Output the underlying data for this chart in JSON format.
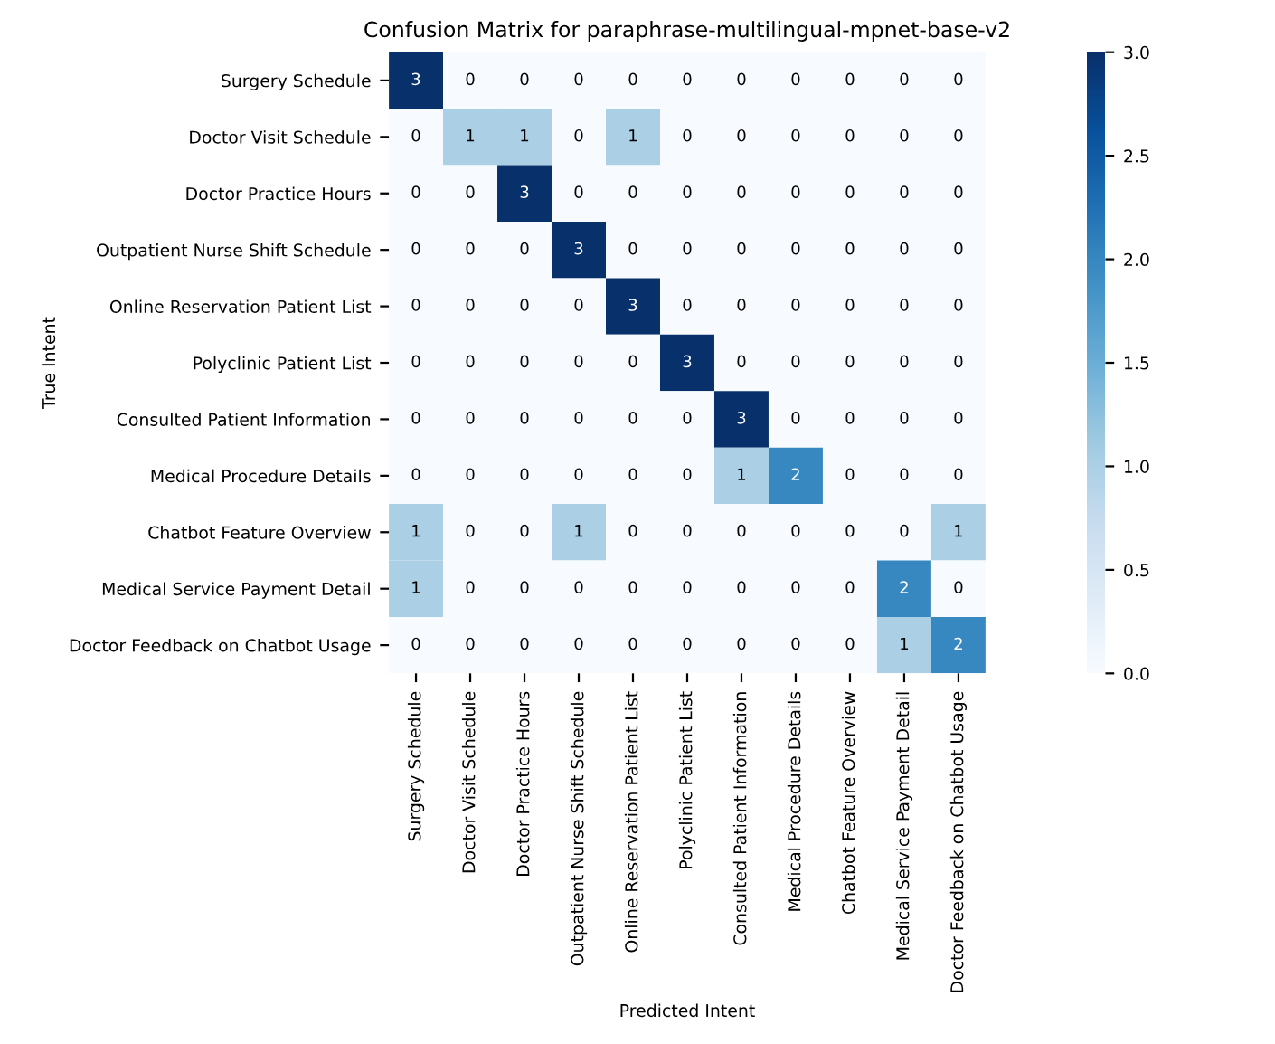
{
  "chart_data": {
    "type": "heatmap",
    "title": "Confusion Matrix for paraphrase-multilingual-mpnet-base-v2",
    "xlabel": "Predicted Intent",
    "ylabel": "True Intent",
    "categories": [
      "Surgery Schedule",
      "Doctor Visit Schedule",
      "Doctor Practice Hours",
      "Outpatient Nurse Shift Schedule",
      "Online Reservation Patient List",
      "Polyclinic Patient List",
      "Consulted Patient Information",
      "Medical Procedure Details",
      "Chatbot Feature Overview",
      "Medical Service Payment Detail",
      "Doctor Feedback on Chatbot Usage"
    ],
    "y_categories": [
      "Surgery Schedule",
      "Doctor Visit Schedule",
      "Doctor Practice Hours",
      "Outpatient Nurse Shift Schedule",
      "Online Reservation Patient List",
      "Polyclinic Patient List",
      "Consulted Patient Information",
      "Medical Procedure Details",
      "Chatbot Feature Overview",
      "Medical Service Payment Detail",
      "Doctor Feedback on Chatbot Usage"
    ],
    "cells": [
      [
        3,
        0,
        0,
        0,
        0,
        0,
        0,
        0,
        0,
        0,
        0
      ],
      [
        0,
        1,
        1,
        0,
        1,
        0,
        0,
        0,
        0,
        0,
        0
      ],
      [
        0,
        0,
        3,
        0,
        0,
        0,
        0,
        0,
        0,
        0,
        0
      ],
      [
        0,
        0,
        0,
        3,
        0,
        0,
        0,
        0,
        0,
        0,
        0
      ],
      [
        0,
        0,
        0,
        0,
        3,
        0,
        0,
        0,
        0,
        0,
        0
      ],
      [
        0,
        0,
        0,
        0,
        0,
        3,
        0,
        0,
        0,
        0,
        0
      ],
      [
        0,
        0,
        0,
        0,
        0,
        0,
        3,
        0,
        0,
        0,
        0
      ],
      [
        0,
        0,
        0,
        0,
        0,
        0,
        1,
        2,
        0,
        0,
        0
      ],
      [
        1,
        0,
        0,
        1,
        0,
        0,
        0,
        0,
        0,
        0,
        1
      ],
      [
        1,
        0,
        0,
        0,
        0,
        0,
        0,
        0,
        0,
        2,
        0
      ],
      [
        0,
        0,
        0,
        0,
        0,
        0,
        0,
        0,
        0,
        1,
        2
      ]
    ],
    "clim": [
      0,
      3
    ],
    "cticks": [
      {
        "value": 0,
        "label": "0.0"
      },
      {
        "value": 0.5,
        "label": "0.5"
      },
      {
        "value": 1,
        "label": "1.0"
      },
      {
        "value": 1.5,
        "label": "1.5"
      },
      {
        "value": 2,
        "label": "2.0"
      },
      {
        "value": 2.5,
        "label": "2.5"
      },
      {
        "value": 3,
        "label": "3.0"
      }
    ],
    "data_labels": true
  }
}
